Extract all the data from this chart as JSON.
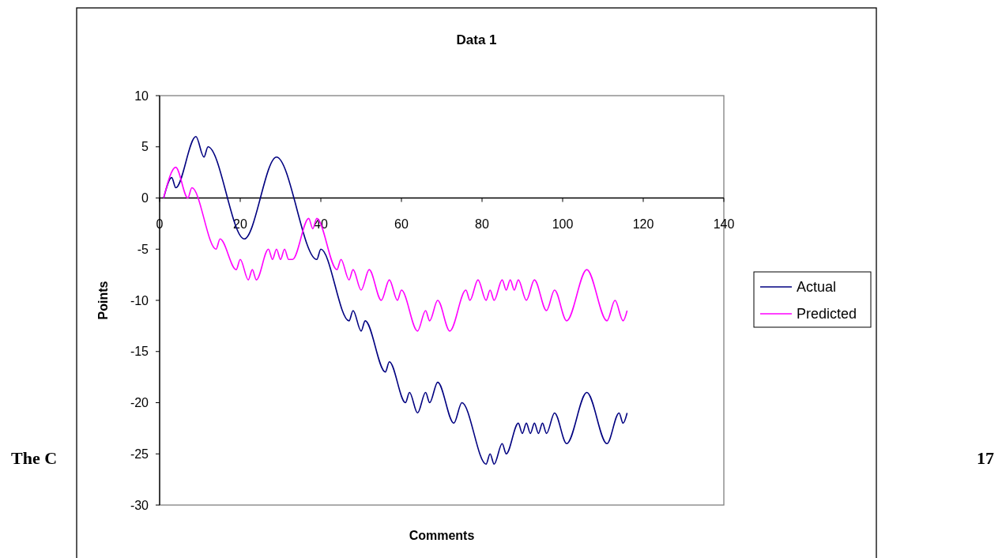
{
  "chart_data": {
    "type": "line",
    "title": "Data 1",
    "xlabel": "Comments",
    "ylabel": "Points",
    "xlim": [
      0,
      140
    ],
    "xticks": [
      0,
      20,
      40,
      60,
      80,
      100,
      120,
      140
    ],
    "ylim": [
      -30,
      10
    ],
    "yticks": [
      -30,
      -25,
      -20,
      -15,
      -10,
      -5,
      0,
      5,
      10
    ],
    "grid": false,
    "legend": "right",
    "marker": "none",
    "line_style": "solid",
    "annotations": [
      "The C",
      "17"
    ],
    "series": [
      {
        "name": "Actual",
        "color": "#000080",
        "x": [
          1,
          3,
          4,
          9,
          11,
          12,
          21,
          29,
          39,
          40,
          47,
          48,
          50,
          51,
          56,
          57,
          61,
          62,
          64,
          66,
          67,
          69,
          73,
          75,
          81,
          82,
          83,
          85,
          86,
          89,
          90,
          91,
          92,
          93,
          94,
          95,
          96,
          98,
          101,
          106,
          111,
          114,
          115,
          116
        ],
        "values": [
          0,
          2,
          1,
          6,
          4,
          5,
          -4,
          4,
          -6,
          -5,
          -12,
          -11,
          -13,
          -12,
          -17,
          -16,
          -20,
          -19,
          -21,
          -19,
          -20,
          -18,
          -22,
          -20,
          -26,
          -25,
          -26,
          -24,
          -25,
          -22,
          -23,
          -22,
          -23,
          -22,
          -23,
          -22,
          -23,
          -21,
          -24,
          -19,
          -24,
          -21,
          -22,
          -21
        ]
      },
      {
        "name": "Predicted",
        "color": "#ff00ff",
        "x": [
          1,
          4,
          7,
          8,
          14,
          15,
          19,
          20,
          22,
          23,
          24,
          27,
          28,
          29,
          30,
          31,
          32,
          33,
          37,
          38,
          39,
          44,
          45,
          47,
          48,
          50,
          52,
          55,
          57,
          59,
          60,
          64,
          66,
          67,
          69,
          72,
          76,
          77,
          79,
          81,
          82,
          83,
          85,
          86,
          87,
          88,
          89,
          91,
          93,
          96,
          98,
          101,
          106,
          111,
          113,
          115,
          116
        ],
        "values": [
          0,
          3,
          0,
          1,
          -5,
          -4,
          -7,
          -6,
          -8,
          -7,
          -8,
          -5,
          -6,
          -5,
          -6,
          -5,
          -6,
          -6,
          -2,
          -3,
          -2,
          -7,
          -6,
          -8,
          -7,
          -9,
          -7,
          -10,
          -8,
          -10,
          -9,
          -13,
          -11,
          -12,
          -10,
          -13,
          -9,
          -10,
          -8,
          -10,
          -9,
          -10,
          -8,
          -9,
          -8,
          -9,
          -8,
          -10,
          -8,
          -11,
          -9,
          -12,
          -7,
          -12,
          -10,
          -12,
          -11
        ]
      }
    ]
  }
}
